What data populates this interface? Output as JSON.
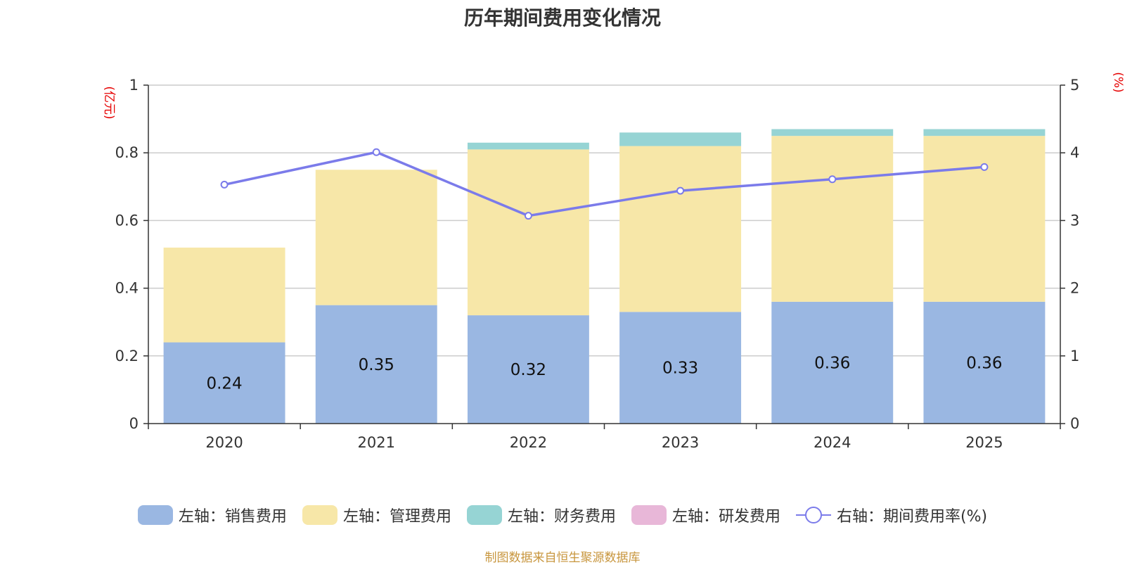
{
  "chart_data": {
    "type": "bar",
    "title": "历年期间费用变化情况",
    "categories": [
      "2020",
      "2021",
      "2022",
      "2023",
      "2024",
      "2025"
    ],
    "series": [
      {
        "name": "左轴：销售费用",
        "axis": "left",
        "color": "#9ab7e2",
        "values": [
          0.24,
          0.35,
          0.32,
          0.33,
          0.36,
          0.36
        ],
        "labels": [
          "0.24",
          "0.35",
          "0.32",
          "0.33",
          "0.36",
          "0.36"
        ]
      },
      {
        "name": "左轴：管理费用",
        "axis": "left",
        "color": "#f7e7a8",
        "values": [
          0.28,
          0.4,
          0.49,
          0.49,
          0.49,
          0.49
        ]
      },
      {
        "name": "左轴：财务费用",
        "axis": "left",
        "color": "#96d4d4",
        "values": [
          0.0,
          0.0,
          0.02,
          0.04,
          0.02,
          0.02
        ]
      },
      {
        "name": "左轴：研发费用",
        "axis": "left",
        "color": "#e8b7d8",
        "values": [
          0,
          0,
          0,
          0,
          0,
          0
        ]
      },
      {
        "name": "右轴：期间费用率(%)",
        "axis": "right",
        "type": "line",
        "color": "#7b7bea",
        "values": [
          3.53,
          4.01,
          3.07,
          3.44,
          3.61,
          3.79
        ]
      }
    ],
    "y_left": {
      "unit": "(亿元)",
      "ylim": [
        0,
        1
      ],
      "ticks": [
        0,
        0.2,
        0.4,
        0.6,
        0.8,
        1
      ],
      "tick_labels": [
        "0",
        "0.2",
        "0.4",
        "0.6",
        "0.8",
        "1"
      ]
    },
    "y_right": {
      "unit": "(%)",
      "ylim": [
        0,
        5
      ],
      "ticks": [
        0,
        1,
        2,
        3,
        4,
        5
      ],
      "tick_labels": [
        "0",
        "1",
        "2",
        "3",
        "4",
        "5"
      ]
    },
    "grid": true,
    "legend": "bottom"
  },
  "footer": {
    "source": "制图数据来自恒生聚源数据库"
  }
}
